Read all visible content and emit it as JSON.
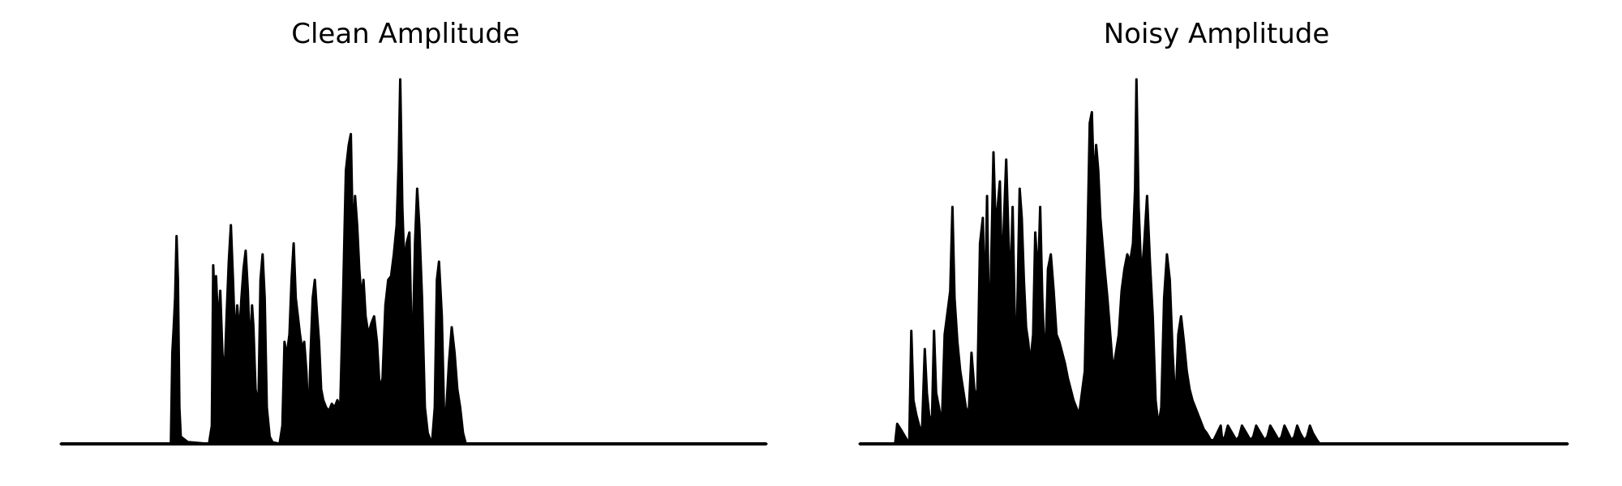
{
  "chart_data": [
    {
      "type": "area",
      "title": "Clean Amplitude",
      "axes_visible": false,
      "ylim": [
        0,
        1
      ],
      "color": "#000000",
      "series": [
        {
          "values": [
            [
              0.0,
              0.0
            ],
            [
              0.156,
              0.0
            ],
            [
              0.158,
              0.25
            ],
            [
              0.16,
              0.32
            ],
            [
              0.162,
              0.4
            ],
            [
              0.164,
              0.57
            ],
            [
              0.166,
              0.45
            ],
            [
              0.168,
              0.1
            ],
            [
              0.17,
              0.02
            ],
            [
              0.18,
              0.005
            ],
            [
              0.21,
              0.0
            ],
            [
              0.214,
              0.05
            ],
            [
              0.216,
              0.49
            ],
            [
              0.218,
              0.38
            ],
            [
              0.22,
              0.46
            ],
            [
              0.223,
              0.32
            ],
            [
              0.226,
              0.42
            ],
            [
              0.229,
              0.25
            ],
            [
              0.232,
              0.18
            ],
            [
              0.235,
              0.35
            ],
            [
              0.238,
              0.5
            ],
            [
              0.241,
              0.6
            ],
            [
              0.244,
              0.45
            ],
            [
              0.247,
              0.28
            ],
            [
              0.25,
              0.38
            ],
            [
              0.253,
              0.3
            ],
            [
              0.256,
              0.4
            ],
            [
              0.259,
              0.48
            ],
            [
              0.262,
              0.53
            ],
            [
              0.265,
              0.42
            ],
            [
              0.268,
              0.25
            ],
            [
              0.271,
              0.38
            ],
            [
              0.273,
              0.32
            ],
            [
              0.276,
              0.15
            ],
            [
              0.28,
              0.1
            ],
            [
              0.283,
              0.45
            ],
            [
              0.286,
              0.52
            ],
            [
              0.289,
              0.4
            ],
            [
              0.292,
              0.1
            ],
            [
              0.296,
              0.02
            ],
            [
              0.3,
              0.005
            ],
            [
              0.31,
              0.0
            ],
            [
              0.314,
              0.05
            ],
            [
              0.317,
              0.28
            ],
            [
              0.32,
              0.24
            ],
            [
              0.324,
              0.3
            ],
            [
              0.327,
              0.45
            ],
            [
              0.33,
              0.55
            ],
            [
              0.333,
              0.4
            ],
            [
              0.336,
              0.35
            ],
            [
              0.339,
              0.3
            ],
            [
              0.342,
              0.26
            ],
            [
              0.345,
              0.28
            ],
            [
              0.348,
              0.2
            ],
            [
              0.351,
              0.05
            ],
            [
              0.354,
              0.25
            ],
            [
              0.357,
              0.4
            ],
            [
              0.36,
              0.45
            ],
            [
              0.363,
              0.36
            ],
            [
              0.366,
              0.28
            ],
            [
              0.369,
              0.15
            ],
            [
              0.372,
              0.12
            ],
            [
              0.376,
              0.1
            ],
            [
              0.38,
              0.09
            ],
            [
              0.384,
              0.11
            ],
            [
              0.388,
              0.1
            ],
            [
              0.392,
              0.12
            ],
            [
              0.396,
              0.1
            ],
            [
              0.4,
              0.4
            ],
            [
              0.404,
              0.75
            ],
            [
              0.408,
              0.82
            ],
            [
              0.411,
              0.85
            ],
            [
              0.414,
              0.55
            ],
            [
              0.417,
              0.68
            ],
            [
              0.42,
              0.6
            ],
            [
              0.423,
              0.48
            ],
            [
              0.426,
              0.4
            ],
            [
              0.429,
              0.45
            ],
            [
              0.432,
              0.35
            ],
            [
              0.436,
              0.3
            ],
            [
              0.44,
              0.33
            ],
            [
              0.444,
              0.35
            ],
            [
              0.448,
              0.28
            ],
            [
              0.452,
              0.15
            ],
            [
              0.456,
              0.18
            ],
            [
              0.46,
              0.38
            ],
            [
              0.464,
              0.45
            ],
            [
              0.468,
              0.46
            ],
            [
              0.472,
              0.52
            ],
            [
              0.476,
              0.6
            ],
            [
              0.479,
              0.78
            ],
            [
              0.481,
              1.0
            ],
            [
              0.484,
              0.65
            ],
            [
              0.487,
              0.48
            ],
            [
              0.49,
              0.55
            ],
            [
              0.494,
              0.58
            ],
            [
              0.498,
              0.2
            ],
            [
              0.502,
              0.55
            ],
            [
              0.505,
              0.7
            ],
            [
              0.508,
              0.6
            ],
            [
              0.512,
              0.4
            ],
            [
              0.516,
              0.1
            ],
            [
              0.52,
              0.03
            ],
            [
              0.526,
              0.0
            ],
            [
              0.53,
              0.1
            ],
            [
              0.533,
              0.45
            ],
            [
              0.536,
              0.5
            ],
            [
              0.54,
              0.35
            ],
            [
              0.543,
              0.1
            ],
            [
              0.546,
              0.08
            ],
            [
              0.55,
              0.22
            ],
            [
              0.554,
              0.32
            ],
            [
              0.558,
              0.25
            ],
            [
              0.562,
              0.15
            ],
            [
              0.566,
              0.1
            ],
            [
              0.57,
              0.03
            ],
            [
              0.574,
              0.0
            ],
            [
              1.0,
              0.0
            ]
          ]
        }
      ]
    },
    {
      "type": "area",
      "title": "Noisy Amplitude",
      "axes_visible": false,
      "ylim": [
        0,
        1
      ],
      "color": "#000000",
      "series": [
        {
          "values": [
            [
              0.0,
              0.0
            ],
            [
              0.05,
              0.0
            ],
            [
              0.053,
              0.055
            ],
            [
              0.058,
              0.04
            ],
            [
              0.064,
              0.02
            ],
            [
              0.07,
              0.0
            ],
            [
              0.073,
              0.31
            ],
            [
              0.076,
              0.12
            ],
            [
              0.08,
              0.08
            ],
            [
              0.084,
              0.05
            ],
            [
              0.088,
              0.03
            ],
            [
              0.092,
              0.26
            ],
            [
              0.095,
              0.14
            ],
            [
              0.098,
              0.08
            ],
            [
              0.102,
              0.05
            ],
            [
              0.105,
              0.31
            ],
            [
              0.108,
              0.14
            ],
            [
              0.112,
              0.1
            ],
            [
              0.116,
              0.05
            ],
            [
              0.12,
              0.3
            ],
            [
              0.124,
              0.36
            ],
            [
              0.128,
              0.42
            ],
            [
              0.131,
              0.65
            ],
            [
              0.134,
              0.4
            ],
            [
              0.138,
              0.28
            ],
            [
              0.142,
              0.2
            ],
            [
              0.146,
              0.15
            ],
            [
              0.15,
              0.1
            ],
            [
              0.154,
              0.08
            ],
            [
              0.158,
              0.25
            ],
            [
              0.162,
              0.15
            ],
            [
              0.166,
              0.12
            ],
            [
              0.17,
              0.55
            ],
            [
              0.174,
              0.62
            ],
            [
              0.177,
              0.35
            ],
            [
              0.18,
              0.68
            ],
            [
              0.183,
              0.25
            ],
            [
              0.186,
              0.52
            ],
            [
              0.189,
              0.8
            ],
            [
              0.192,
              0.6
            ],
            [
              0.195,
              0.65
            ],
            [
              0.198,
              0.72
            ],
            [
              0.201,
              0.45
            ],
            [
              0.204,
              0.62
            ],
            [
              0.207,
              0.78
            ],
            [
              0.21,
              0.58
            ],
            [
              0.213,
              0.42
            ],
            [
              0.216,
              0.65
            ],
            [
              0.219,
              0.35
            ],
            [
              0.222,
              0.3
            ],
            [
              0.226,
              0.7
            ],
            [
              0.229,
              0.62
            ],
            [
              0.232,
              0.45
            ],
            [
              0.235,
              0.32
            ],
            [
              0.238,
              0.28
            ],
            [
              0.241,
              0.22
            ],
            [
              0.245,
              0.3
            ],
            [
              0.248,
              0.58
            ],
            [
              0.252,
              0.45
            ],
            [
              0.255,
              0.65
            ],
            [
              0.258,
              0.4
            ],
            [
              0.262,
              0.2
            ],
            [
              0.266,
              0.48
            ],
            [
              0.27,
              0.52
            ],
            [
              0.274,
              0.42
            ],
            [
              0.278,
              0.3
            ],
            [
              0.282,
              0.28
            ],
            [
              0.286,
              0.25
            ],
            [
              0.29,
              0.22
            ],
            [
              0.294,
              0.18
            ],
            [
              0.298,
              0.15
            ],
            [
              0.302,
              0.12
            ],
            [
              0.306,
              0.1
            ],
            [
              0.31,
              0.08
            ],
            [
              0.318,
              0.2
            ],
            [
              0.322,
              0.58
            ],
            [
              0.325,
              0.88
            ],
            [
              0.328,
              0.91
            ],
            [
              0.331,
              0.7
            ],
            [
              0.334,
              0.82
            ],
            [
              0.337,
              0.75
            ],
            [
              0.34,
              0.62
            ],
            [
              0.343,
              0.55
            ],
            [
              0.346,
              0.48
            ],
            [
              0.35,
              0.4
            ],
            [
              0.354,
              0.3
            ],
            [
              0.358,
              0.2
            ],
            [
              0.362,
              0.25
            ],
            [
              0.366,
              0.3
            ],
            [
              0.37,
              0.42
            ],
            [
              0.374,
              0.48
            ],
            [
              0.378,
              0.52
            ],
            [
              0.382,
              0.5
            ],
            [
              0.386,
              0.55
            ],
            [
              0.389,
              0.7
            ],
            [
              0.391,
              1.0
            ],
            [
              0.394,
              0.65
            ],
            [
              0.398,
              0.45
            ],
            [
              0.402,
              0.55
            ],
            [
              0.406,
              0.68
            ],
            [
              0.41,
              0.5
            ],
            [
              0.414,
              0.35
            ],
            [
              0.418,
              0.12
            ],
            [
              0.422,
              0.05
            ],
            [
              0.426,
              0.1
            ],
            [
              0.43,
              0.4
            ],
            [
              0.434,
              0.52
            ],
            [
              0.438,
              0.45
            ],
            [
              0.442,
              0.25
            ],
            [
              0.446,
              0.1
            ],
            [
              0.45,
              0.3
            ],
            [
              0.454,
              0.35
            ],
            [
              0.458,
              0.28
            ],
            [
              0.462,
              0.2
            ],
            [
              0.466,
              0.15
            ],
            [
              0.47,
              0.12
            ],
            [
              0.474,
              0.1
            ],
            [
              0.478,
              0.08
            ],
            [
              0.482,
              0.06
            ],
            [
              0.486,
              0.04
            ],
            [
              0.49,
              0.03
            ],
            [
              0.496,
              0.01
            ],
            [
              0.5,
              0.01
            ],
            [
              0.505,
              0.03
            ],
            [
              0.51,
              0.05
            ],
            [
              0.512,
              0.01
            ],
            [
              0.516,
              0.02
            ],
            [
              0.52,
              0.05
            ],
            [
              0.526,
              0.03
            ],
            [
              0.532,
              0.01
            ],
            [
              0.536,
              0.02
            ],
            [
              0.54,
              0.05
            ],
            [
              0.546,
              0.03
            ],
            [
              0.552,
              0.01
            ],
            [
              0.556,
              0.02
            ],
            [
              0.56,
              0.05
            ],
            [
              0.566,
              0.03
            ],
            [
              0.572,
              0.01
            ],
            [
              0.576,
              0.02
            ],
            [
              0.58,
              0.05
            ],
            [
              0.586,
              0.03
            ],
            [
              0.592,
              0.01
            ],
            [
              0.596,
              0.02
            ],
            [
              0.6,
              0.05
            ],
            [
              0.605,
              0.03
            ],
            [
              0.61,
              0.01
            ],
            [
              0.614,
              0.02
            ],
            [
              0.618,
              0.05
            ],
            [
              0.622,
              0.03
            ],
            [
              0.628,
              0.01
            ],
            [
              0.632,
              0.02
            ],
            [
              0.636,
              0.05
            ],
            [
              0.64,
              0.03
            ],
            [
              0.646,
              0.01
            ],
            [
              0.65,
              0.0
            ],
            [
              1.0,
              0.0
            ]
          ]
        }
      ]
    }
  ],
  "panels": {
    "left": {
      "title": "Clean Amplitude"
    },
    "right": {
      "title": "Noisy Amplitude"
    }
  }
}
